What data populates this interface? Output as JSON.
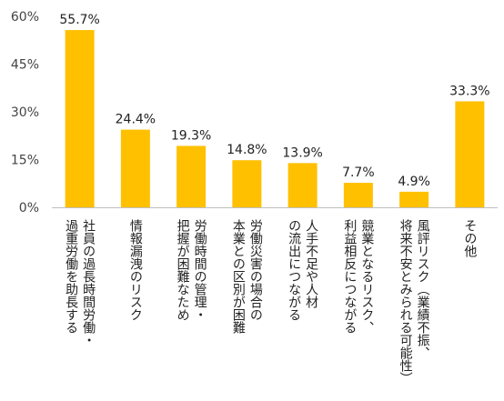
{
  "chart_data": {
    "type": "bar",
    "title": "",
    "xlabel": "",
    "ylabel": "",
    "ylim": [
      0,
      60
    ],
    "yticks": [
      0,
      15,
      30,
      45,
      60
    ],
    "ytick_labels": [
      "0%",
      "15%",
      "30%",
      "45%",
      "60%"
    ],
    "grid": false,
    "legend": "none",
    "bar_color": "#FFC000",
    "axis_color": "#BFBFBF",
    "categories": [
      [
        "社員の過長時間労働・",
        "過重労働を助長する"
      ],
      [
        "情報漏洩のリスク"
      ],
      [
        "労働時間の管理・",
        "把握が困難なため"
      ],
      [
        "労働災害の場合の",
        "本業との区別が困難"
      ],
      [
        "人手不足や人材",
        "の流出につながる"
      ],
      [
        "競業となるリスク、",
        "利益相反につながる"
      ],
      [
        "風評リスク（業績不振、",
        "将来不安とみられる可能性）"
      ],
      [
        "その他"
      ]
    ],
    "values": [
      55.7,
      24.4,
      19.3,
      14.8,
      13.9,
      7.7,
      4.9,
      33.3
    ],
    "value_labels": [
      "55.7%",
      "24.4%",
      "19.3%",
      "14.8%",
      "13.9%",
      "7.7%",
      "4.9%",
      "33.3%"
    ]
  }
}
